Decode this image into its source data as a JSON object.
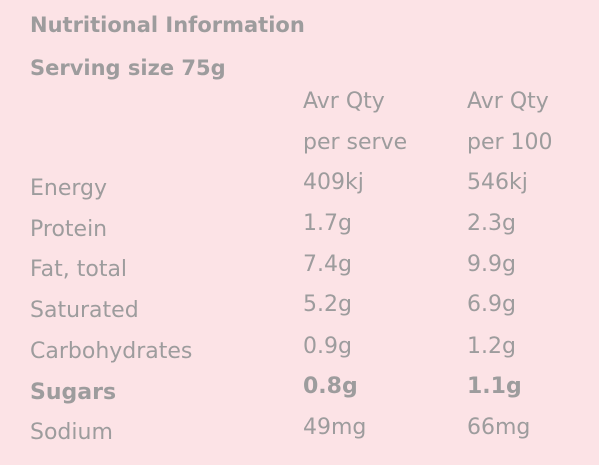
{
  "header": {
    "title": "Nutritional Information",
    "serving_size": "Serving size 75g"
  },
  "table": {
    "columns": [
      [
        "Avr Qty",
        "per serve"
      ],
      [
        "Avr Qty",
        "per 100"
      ]
    ],
    "rows": [
      [
        "Energy",
        "409kj",
        "546kj"
      ],
      [
        "Protein",
        "1.7g",
        "2.3g"
      ],
      [
        "Fat, total",
        "7.4g",
        "9.9g"
      ],
      [
        "Saturated",
        "5.2g",
        "6.9g"
      ],
      [
        "Carbohydrates",
        "0.9g",
        "1.2g"
      ],
      [
        "Sugars",
        "0.8g",
        "1.1g"
      ],
      [
        "Sodium",
        "49mg",
        "66mg"
      ]
    ]
  }
}
